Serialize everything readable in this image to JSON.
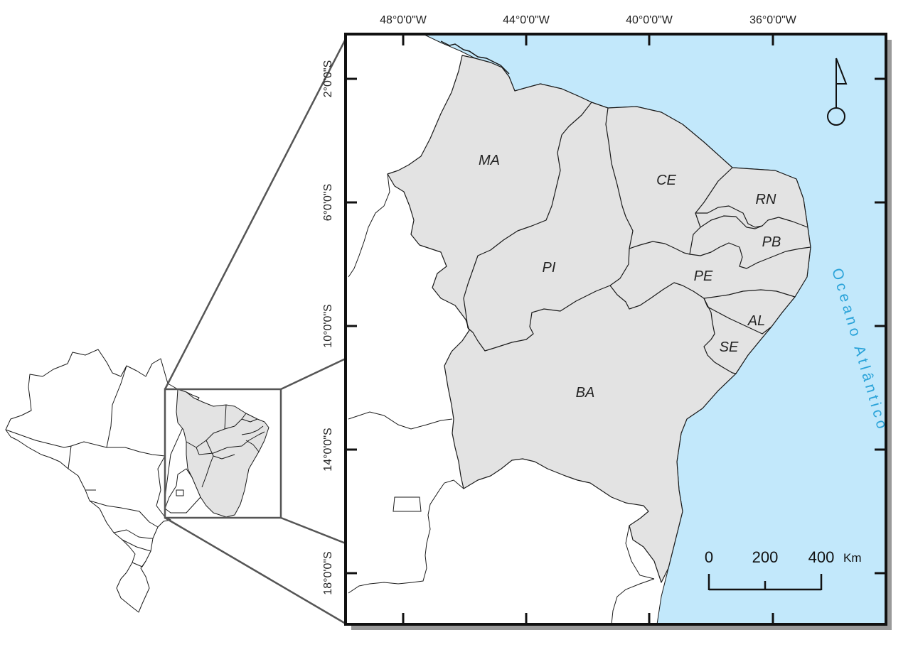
{
  "map": {
    "colors": {
      "ocean": "#c2e8fb",
      "region": "#e3e3e3",
      "land": "#ffffff",
      "border": "#1a1a1a",
      "ocean_label": "#2aa3d9",
      "frame": "#111111",
      "shadow": "#9a9a9a",
      "connector": "#555555"
    },
    "longitude_labels": [
      "48°0'0\"W",
      "44°0'0\"W",
      "40°0'0\"W",
      "36°0'0\"W"
    ],
    "latitude_labels": [
      "2°0'0\"S",
      "6°0'0\"S",
      "10°0'0\"S",
      "14°0'0\"S",
      "18°0'0\"S"
    ],
    "states": [
      {
        "code": "MA"
      },
      {
        "code": "PI"
      },
      {
        "code": "CE"
      },
      {
        "code": "RN"
      },
      {
        "code": "PB"
      },
      {
        "code": "PE"
      },
      {
        "code": "AL"
      },
      {
        "code": "SE"
      },
      {
        "code": "BA"
      }
    ],
    "ocean_label": "Oceano Atlântico",
    "north_arrow": {
      "icon": "north-arrow-icon"
    },
    "scale_bar": {
      "ticks": [
        "0",
        "200",
        "400"
      ],
      "unit": "Km"
    }
  }
}
